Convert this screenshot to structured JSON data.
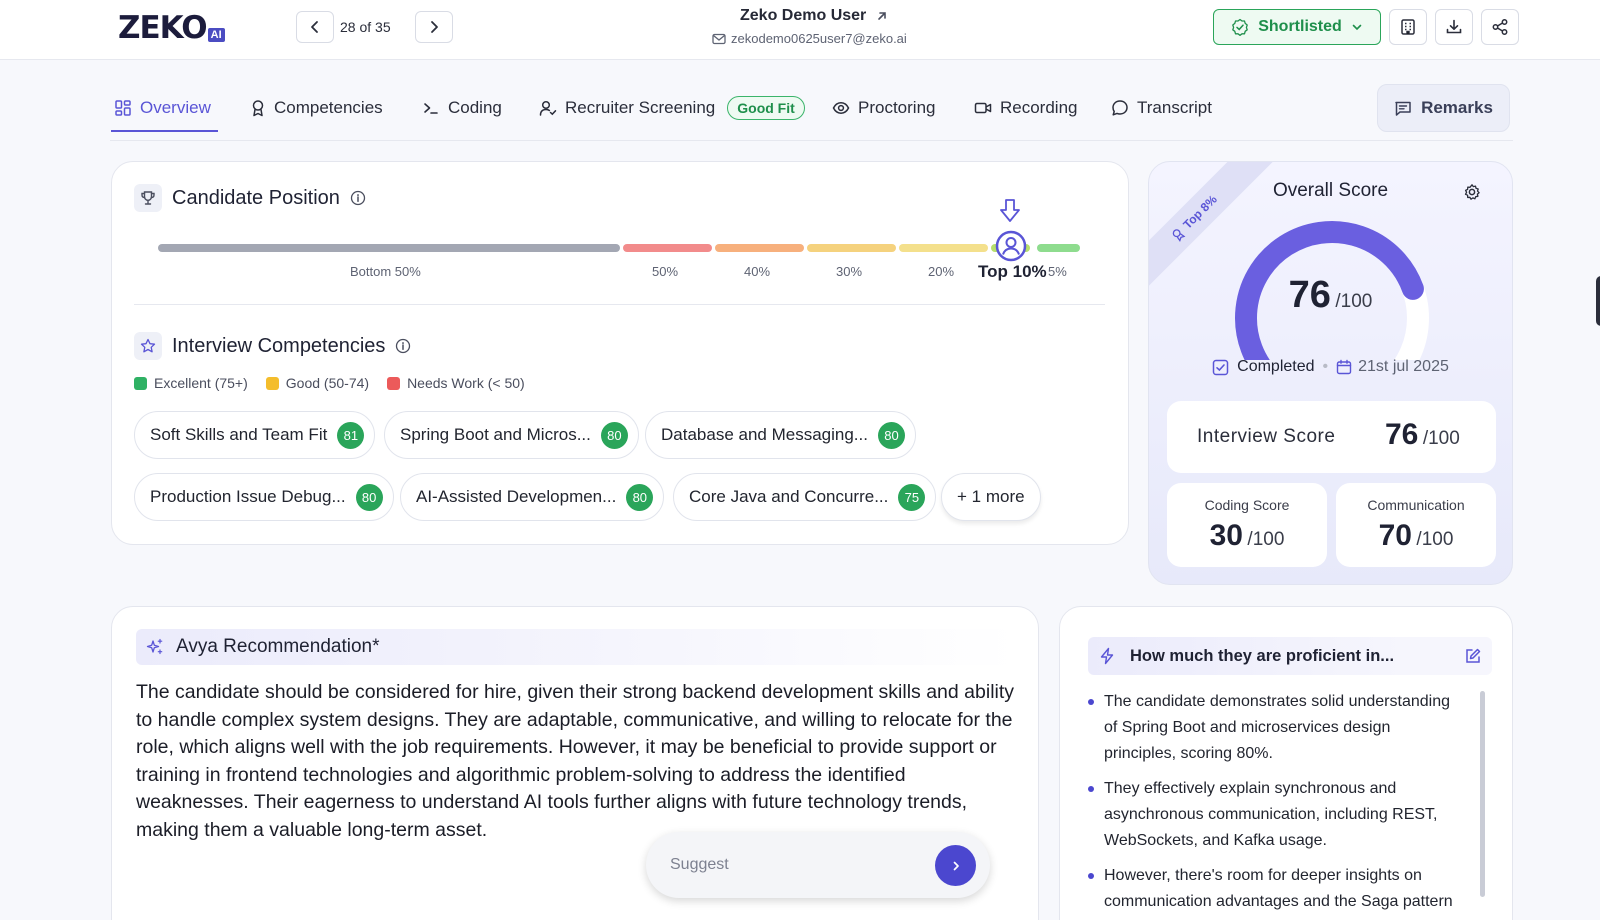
{
  "header": {
    "logo_text": "ZEKO",
    "logo_suffix": "AI",
    "counter": "28 of 35",
    "user_name": "Zeko Demo User",
    "user_email": "zekodemo0625user7@zeko.ai",
    "status": "Shortlisted"
  },
  "tabs": [
    {
      "label": "Overview"
    },
    {
      "label": "Competencies"
    },
    {
      "label": "Coding"
    },
    {
      "label": "Recruiter Screening",
      "badge": "Good Fit"
    },
    {
      "label": "Proctoring"
    },
    {
      "label": "Recording"
    },
    {
      "label": "Transcript"
    }
  ],
  "remarks_label": "Remarks",
  "position": {
    "title": "Candidate Position",
    "ticks": [
      "Bottom 50%",
      "50%",
      "40%",
      "30%",
      "20%",
      "Top 10%",
      "5%"
    ],
    "marker_label": "Top 10%"
  },
  "competencies": {
    "title": "Interview Competencies",
    "legend": [
      {
        "label": "Excellent (75+)",
        "color": "#2fb164"
      },
      {
        "label": "Good (50-74)",
        "color": "#f4bd2c"
      },
      {
        "label": "Needs Work (< 50)",
        "color": "#ec5a5a"
      }
    ],
    "chips": [
      {
        "label": "Soft Skills and Team Fit",
        "score": "81"
      },
      {
        "label": "Spring Boot and Micros...",
        "score": "80"
      },
      {
        "label": "Database and Messaging...",
        "score": "80"
      },
      {
        "label": "Production Issue Debug...",
        "score": "80"
      },
      {
        "label": "AI-Assisted Developmen...",
        "score": "80"
      },
      {
        "label": "Core Java and Concurre...",
        "score": "75"
      }
    ],
    "more": "+ 1 more"
  },
  "overall": {
    "ribbon": "Top 8%",
    "title": "Overall Score",
    "score": "76",
    "out_of": "/100",
    "score_fraction": 0.76,
    "status": "Completed",
    "date": "21st jul 2025",
    "interview_label": "Interview Score",
    "interview_score": "76",
    "coding_label": "Coding Score",
    "coding_score": "30",
    "communication_label": "Communication",
    "communication_score": "70",
    "accent": "#6a5fe0"
  },
  "recommendation": {
    "title": "Avya Recommendation*",
    "text": "The candidate should be considered for hire, given their strong backend development skills and ability to handle complex system designs. They are adaptable, communicative, and willing to relocate for the role, which aligns well with the job requirements. However, it may be beneficial to provide support or training in frontend technologies and algorithmic problem-solving to address the identified weaknesses. Their eagerness to understand AI tools further aligns with future technology trends, making them a valuable long-term asset.",
    "suggest_placeholder": "Suggest"
  },
  "proficiency": {
    "title": "How much they are proficient in...",
    "bullets": [
      "The candidate demonstrates solid understanding of Spring Boot and microservices design principles, scoring 80%.",
      "They effectively explain synchronous and asynchronous communication, including REST, WebSockets, and Kafka usage.",
      "However, there's room for deeper insights on communication advantages and the Saga pattern"
    ]
  }
}
